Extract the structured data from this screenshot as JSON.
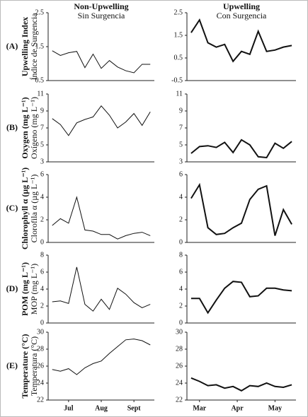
{
  "columns": [
    {
      "title": "Non-Upwelling",
      "subtitle": "Sin Surgencia"
    },
    {
      "title": "Upwelling",
      "subtitle": "Con Surgencia"
    }
  ],
  "rows": [
    {
      "letter": "(A)",
      "label": "Upwelling Index",
      "sublabel": "Índice de Surgencia"
    },
    {
      "letter": "(B)",
      "label": "Oxygen (mg L⁻¹)",
      "sublabel": "Oxígeno (mg L⁻¹)"
    },
    {
      "letter": "(C)",
      "label": "Chlorophyll α (µg L⁻¹)",
      "sublabel": "Clorofila α (µg L⁻¹)"
    },
    {
      "letter": "(D)",
      "label": "POM (mg L⁻¹)",
      "sublabel": "MOP (mg L⁻¹)"
    },
    {
      "letter": "(E)",
      "label": "Temperature (°C)",
      "sublabel": "Temperatura (°C)"
    }
  ],
  "chart_data": [
    {
      "type": "line",
      "x": [
        0,
        1,
        2,
        3,
        4,
        5,
        6,
        7,
        8,
        9,
        10,
        11,
        12
      ],
      "values": [
        1.38,
        1.24,
        1.32,
        1.36,
        0.88,
        1.28,
        0.86,
        1.09,
        0.9,
        0.79,
        0.73,
        0.98,
        0.98
      ],
      "xlim": [
        -0.5,
        12.5
      ],
      "ylim": [
        0.5,
        2.5
      ],
      "yticks": [
        2.5,
        1.5,
        0.5
      ]
    },
    {
      "type": "line",
      "x": [
        0,
        1,
        2,
        3,
        4,
        5,
        6,
        7,
        8,
        9,
        10,
        11,
        12
      ],
      "values": [
        1.62,
        2.18,
        1.17,
        0.98,
        1.1,
        0.35,
        0.79,
        0.66,
        1.68,
        0.79,
        0.85,
        0.98,
        1.05
      ],
      "xlim": [
        -0.5,
        12.5
      ],
      "ylim": [
        -0.5,
        2.5
      ],
      "yticks": [
        2.5,
        1.5,
        0.5,
        -0.5
      ]
    },
    {
      "type": "line",
      "x": [
        0,
        1,
        2,
        3,
        4,
        5,
        6,
        7,
        8,
        9,
        10,
        11,
        12
      ],
      "values": [
        8.1,
        7.4,
        6.1,
        7.6,
        8.0,
        8.3,
        9.6,
        8.5,
        7.0,
        7.7,
        8.7,
        7.3,
        8.9
      ],
      "xlim": [
        -0.5,
        12.5
      ],
      "ylim": [
        3,
        11
      ],
      "yticks": [
        11,
        9,
        7,
        5,
        3
      ]
    },
    {
      "type": "line",
      "x": [
        0,
        1,
        2,
        3,
        4,
        5,
        6,
        7,
        8,
        9,
        10,
        11,
        12
      ],
      "values": [
        4.0,
        4.8,
        4.9,
        4.7,
        5.3,
        4.1,
        5.6,
        5.0,
        3.6,
        3.5,
        5.2,
        4.6,
        5.4
      ],
      "xlim": [
        -0.5,
        12.5
      ],
      "ylim": [
        3,
        11
      ],
      "yticks": [
        11,
        9,
        7,
        5,
        3
      ]
    },
    {
      "type": "line",
      "x": [
        0,
        1,
        2,
        3,
        4,
        5,
        6,
        7,
        8,
        9,
        10,
        11,
        12
      ],
      "values": [
        1.5,
        2.1,
        1.7,
        4.0,
        1.1,
        1.0,
        0.7,
        0.7,
        0.3,
        0.6,
        0.8,
        0.9,
        0.6
      ],
      "xlim": [
        -0.5,
        12.5
      ],
      "ylim": [
        0,
        6
      ],
      "yticks": [
        6,
        4,
        2,
        0
      ]
    },
    {
      "type": "line",
      "x": [
        0,
        1,
        2,
        3,
        4,
        5,
        6,
        7,
        8,
        9,
        10,
        11,
        12
      ],
      "values": [
        3.9,
        5.1,
        1.3,
        0.7,
        0.8,
        1.3,
        1.7,
        3.8,
        4.7,
        5.0,
        0.6,
        2.9,
        1.6
      ],
      "xlim": [
        -0.5,
        12.5
      ],
      "ylim": [
        0,
        6
      ],
      "yticks": [
        6,
        4,
        2,
        0
      ]
    },
    {
      "type": "line",
      "x": [
        0,
        1,
        2,
        3,
        4,
        5,
        6,
        7,
        8,
        9,
        10,
        11,
        12
      ],
      "values": [
        2.5,
        2.6,
        2.3,
        6.6,
        2.2,
        1.4,
        2.8,
        1.6,
        4.1,
        3.4,
        2.4,
        1.8,
        2.2
      ],
      "xlim": [
        -0.5,
        12.5
      ],
      "ylim": [
        0,
        8
      ],
      "yticks": [
        8,
        6,
        4,
        2,
        0
      ]
    },
    {
      "type": "line",
      "x": [
        0,
        1,
        2,
        3,
        4,
        5,
        6,
        7,
        8,
        9,
        10,
        11,
        12
      ],
      "values": [
        2.9,
        2.9,
        1.2,
        2.7,
        4.1,
        4.9,
        4.8,
        3.1,
        3.2,
        4.1,
        4.1,
        3.9,
        3.8
      ],
      "xlim": [
        -0.5,
        12.5
      ],
      "ylim": [
        0,
        8
      ],
      "yticks": [
        8,
        6,
        4,
        2,
        0
      ]
    },
    {
      "type": "line",
      "x": [
        0,
        1,
        2,
        3,
        4,
        5,
        6,
        7,
        8,
        9,
        10,
        11,
        12
      ],
      "values": [
        25.6,
        25.4,
        25.7,
        25.0,
        25.8,
        26.3,
        26.6,
        27.5,
        28.3,
        29.1,
        29.2,
        29.0,
        28.5
      ],
      "xlim": [
        -0.5,
        12.5
      ],
      "ylim": [
        22,
        30
      ],
      "yticks": [
        30,
        28,
        26,
        24,
        22
      ],
      "xticks": [
        {
          "value": 2,
          "label": "Jul"
        },
        {
          "value": 6,
          "label": "Aug"
        },
        {
          "value": 10,
          "label": "Sept"
        }
      ]
    },
    {
      "type": "line",
      "x": [
        0,
        1,
        2,
        3,
        4,
        5,
        6,
        7,
        8,
        9,
        10,
        11,
        12
      ],
      "values": [
        24.6,
        24.2,
        23.7,
        23.8,
        23.4,
        23.6,
        23.1,
        23.7,
        23.6,
        24.0,
        23.6,
        23.5,
        23.8
      ],
      "xlim": [
        -0.5,
        12.5
      ],
      "ylim": [
        22,
        30
      ],
      "yticks": [
        30,
        28,
        26,
        24,
        22
      ],
      "xticks": [
        {
          "value": 1,
          "label": "Mar"
        },
        {
          "value": 5.5,
          "label": "Apr"
        },
        {
          "value": 10,
          "label": "May"
        }
      ]
    }
  ]
}
